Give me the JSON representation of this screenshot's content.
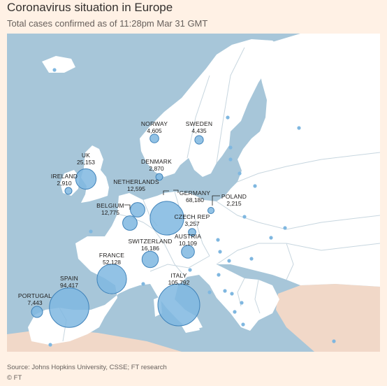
{
  "header": {
    "title": "Coronavirus situation in Europe",
    "subtitle": "Total cases confirmed as of 11:28pm Mar 31 GMT"
  },
  "colors": {
    "sea": "#a7c6d9",
    "land": "#ffffff",
    "other_land": "#f1d8c8",
    "border": "#c7d6df",
    "bubble_fill": "#7fb7e0",
    "bubble_stroke": "#3f82b9"
  },
  "chart_data": {
    "type": "proportional-symbol-map",
    "series": [
      {
        "name": "",
        "metric": "Total cases confirmed"
      }
    ],
    "points": [
      {
        "country": "UK",
        "cases": "25,153",
        "value": 25153
      },
      {
        "country": "IRELAND",
        "cases": "2,910",
        "value": 2910
      },
      {
        "country": "NORWAY",
        "cases": "4,605",
        "value": 4605
      },
      {
        "country": "SWEDEN",
        "cases": "4,435",
        "value": 4435
      },
      {
        "country": "DENMARK",
        "cases": "2,870",
        "value": 2870
      },
      {
        "country": "NETHERLANDS",
        "cases": "12,595",
        "value": 12595
      },
      {
        "country": "BELGIUM",
        "cases": "12,775",
        "value": 12775
      },
      {
        "country": "GERMANY",
        "cases": "68,180",
        "value": 68180
      },
      {
        "country": "POLAND",
        "cases": "2,215",
        "value": 2215
      },
      {
        "country": "CZECH REP",
        "cases": "3,257",
        "value": 3257
      },
      {
        "country": "AUSTRIA",
        "cases": "10,109",
        "value": 10109
      },
      {
        "country": "SWITZERLAND",
        "cases": "16,186",
        "value": 16186
      },
      {
        "country": "FRANCE",
        "cases": "52,128",
        "value": 52128
      },
      {
        "country": "ITALY",
        "cases": "105,792",
        "value": 105792
      },
      {
        "country": "SPAIN",
        "cases": "94,417",
        "value": 94417
      },
      {
        "country": "PORTUGAL",
        "cases": "7,443",
        "value": 7443
      }
    ]
  },
  "footer": {
    "source": "Source: Johns Hopkins University, CSSE; FT research",
    "credit": "© FT"
  }
}
